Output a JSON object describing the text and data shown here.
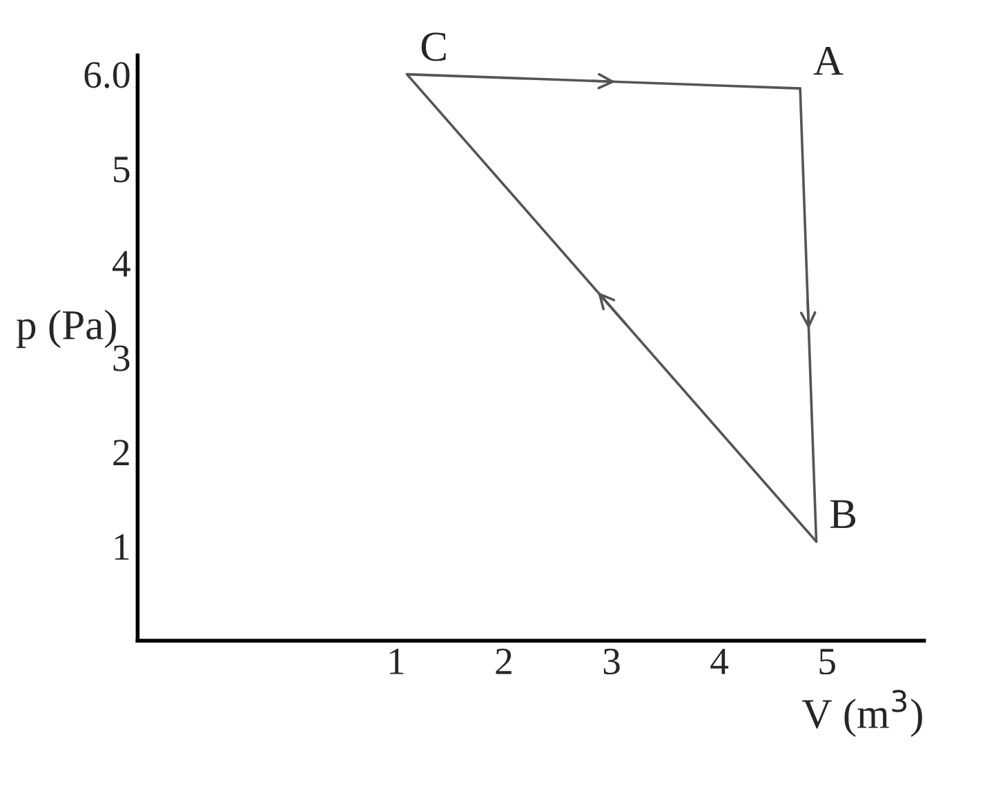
{
  "chart_data": {
    "type": "line",
    "xlabel": "V (m$^{3}$)",
    "ylabel": "p (Pa)",
    "series": [
      {
        "x": [
          1.1,
          4.75
        ],
        "values": [
          6.0,
          5.85
        ],
        "color": "#555555"
      },
      {
        "x": [
          4.75,
          4.9
        ],
        "values": [
          5.85,
          1.05
        ],
        "color": "#555555"
      },
      {
        "x": [
          4.9,
          1.1
        ],
        "values": [
          1.05,
          6.0
        ],
        "color": "#555555"
      }
    ],
    "xlim": [
      -1.4,
      5.9
    ],
    "ylim": [
      0,
      6.2
    ],
    "xticks": [
      1,
      2,
      3,
      4,
      5
    ],
    "yticks": [
      1,
      2,
      3,
      4,
      5,
      {
        "value": 6,
        "label": "6.0"
      }
    ],
    "annotations": [
      {
        "text": "C",
        "x": 1.1,
        "y": 6.0
      },
      {
        "text": "A",
        "x": 4.75,
        "y": 5.85
      },
      {
        "text": "B",
        "x": 4.9,
        "y": 1.05
      }
    ]
  }
}
